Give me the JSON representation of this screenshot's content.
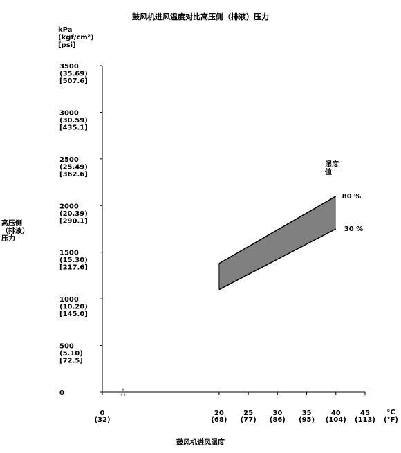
{
  "chart_data": {
    "type": "area",
    "title": "鼓风机进风温度对比高压侧（排液）压力",
    "xlabel": "鼓风机进风温度",
    "ylabel_lines": [
      "高压侧",
      "（排液）",
      "压力"
    ],
    "y_unit_lines": [
      "kPa",
      "(kgf/cm²)",
      "[psi]"
    ],
    "x_unit_lines": [
      "°C",
      "(°F)"
    ],
    "legend_title_lines": [
      "湿度",
      "值"
    ],
    "xlim": [
      0,
      45
    ],
    "ylim": [
      0,
      3500
    ],
    "x_ticks": [
      {
        "value": 0,
        "main": "0",
        "sub": "(32)"
      },
      {
        "value": 20,
        "main": "20",
        "sub": "(68)"
      },
      {
        "value": 25,
        "main": "25",
        "sub": "(77)"
      },
      {
        "value": 30,
        "main": "30",
        "sub": "(86)"
      },
      {
        "value": 35,
        "main": "35",
        "sub": "(95)"
      },
      {
        "value": 40,
        "main": "40",
        "sub": "(104)"
      },
      {
        "value": 45,
        "main": "45",
        "sub": "(113)"
      }
    ],
    "y_ticks": [
      {
        "value": 0,
        "lines": [
          "0"
        ]
      },
      {
        "value": 500,
        "lines": [
          "500",
          "(5.10)",
          "[72.5]"
        ]
      },
      {
        "value": 1000,
        "lines": [
          "1000",
          "(10.20)",
          "[145.0]"
        ]
      },
      {
        "value": 1500,
        "lines": [
          "1500",
          "(15.30)",
          "[217.6]"
        ]
      },
      {
        "value": 2000,
        "lines": [
          "2000",
          "(20.39)",
          "[290.1]"
        ]
      },
      {
        "value": 2500,
        "lines": [
          "2500",
          "(25.49)",
          "[362.6]"
        ]
      },
      {
        "value": 3000,
        "lines": [
          "3000",
          "(30.59)",
          "[435.1]"
        ]
      },
      {
        "value": 3500,
        "lines": [
          "3500",
          "(35.69)",
          "[507.6]"
        ]
      }
    ],
    "series": [
      {
        "name": "80 %",
        "x": [
          20,
          40
        ],
        "values": [
          1380,
          2100
        ]
      },
      {
        "name": "30 %",
        "x": [
          20,
          40
        ],
        "values": [
          1100,
          1750
        ]
      }
    ],
    "band_fill": "#808080",
    "grid": false
  }
}
